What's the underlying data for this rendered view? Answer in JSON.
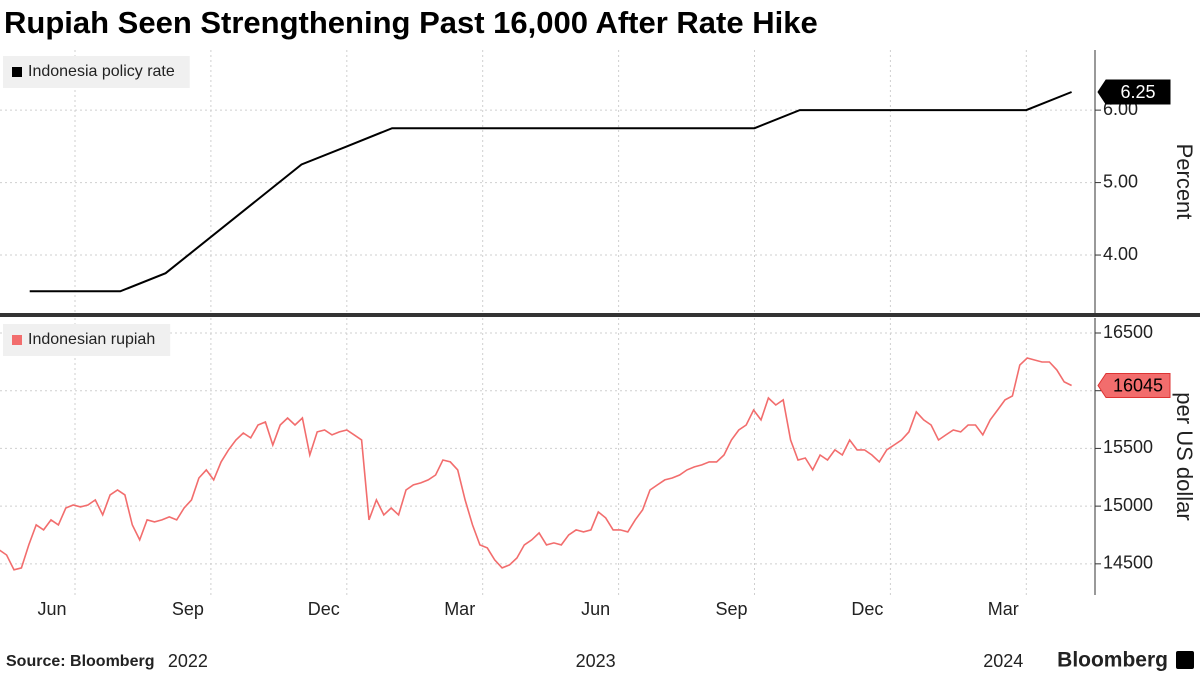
{
  "chart_data": {
    "type": "line",
    "title": "Rupiah Seen Strengthening Past 16,000 After Rate Hike",
    "source": "Source: Bloomberg",
    "brand": "Bloomberg",
    "xlim": [
      "2022-04",
      "2024-05"
    ],
    "xticks": [
      {
        "value": "2022-06",
        "label": "Jun"
      },
      {
        "value": "2022-09",
        "label": "Sep"
      },
      {
        "value": "2022-12",
        "label": "Dec"
      },
      {
        "value": "2023-03",
        "label": "Mar"
      },
      {
        "value": "2023-06",
        "label": "Jun"
      },
      {
        "value": "2023-09",
        "label": "Sep"
      },
      {
        "value": "2023-12",
        "label": "Dec"
      },
      {
        "value": "2024-03",
        "label": "Mar"
      }
    ],
    "year_labels": [
      {
        "value": "2022-09",
        "label": "2022"
      },
      {
        "value": "2023-06",
        "label": "2023"
      },
      {
        "value": "2024-03",
        "label": "2024"
      }
    ],
    "grid": true,
    "panels": [
      {
        "y_label": "Percent",
        "ylim": [
          3.2,
          6.83
        ],
        "yticks": [
          {
            "value": 4,
            "label": "4.00"
          },
          {
            "value": 5,
            "label": "5.00"
          },
          {
            "value": 6,
            "label": "6.00"
          }
        ],
        "series": [
          {
            "name": "Indonesia policy rate",
            "color": "#000000",
            "x": [
              "2022-05",
              "2022-07",
              "2022-08",
              "2022-11",
              "2022-12",
              "2023-01",
              "2023-09",
              "2023-10",
              "2024-03",
              "2024-04"
            ],
            "values": [
              3.5,
              3.5,
              3.75,
              5.25,
              5.5,
              5.75,
              5.75,
              6.0,
              6.0,
              6.25
            ]
          }
        ]
      },
      {
        "y_label": "per US dollar",
        "ylim": [
          14230,
          16630
        ],
        "yticks": [
          14500,
          15000,
          15500,
          16000,
          16500
        ],
        "series": [
          {
            "name": "Indonesian rupiah",
            "color": "#f26d6d",
            "x_range": [
              "2022-04",
              "2024-04"
            ],
            "values": [
              14534,
              14707,
              14621,
              14577,
              14448,
              14465,
              14664,
              14837,
              14794,
              14881,
              14837,
              14984,
              15010,
              14993,
              15010,
              15054,
              14924,
              15097,
              15140,
              15097,
              14837,
              14707,
              14881,
              14863,
              14881,
              14907,
              14881,
              14984,
              15054,
              15244,
              15314,
              15227,
              15383,
              15487,
              15573,
              15634,
              15591,
              15703,
              15729,
              15530,
              15703,
              15764,
              15703,
              15764,
              15443,
              15643,
              15660,
              15617,
              15643,
              15660,
              15617,
              15573,
              14881,
              15054,
              14924,
              14984,
              14924,
              15140,
              15184,
              15201,
              15227,
              15270,
              15400,
              15383,
              15314,
              15054,
              14837,
              14664,
              14638,
              14534,
              14465,
              14491,
              14551,
              14664,
              14707,
              14768,
              14664,
              14681,
              14664,
              14751,
              14794,
              14777,
              14794,
              14950,
              14898,
              14794,
              14794,
              14777,
              14881,
              14967,
              15140,
              15184,
              15227,
              15244,
              15270,
              15314,
              15340,
              15357,
              15383,
              15383,
              15443,
              15573,
              15660,
              15703,
              15833,
              15747,
              15937,
              15876,
              15920,
              15573,
              15400,
              15417,
              15314,
              15443,
              15400,
              15487,
              15443,
              15573,
              15487,
              15487,
              15443,
              15383,
              15487,
              15530,
              15573,
              15643,
              15816,
              15747,
              15703,
              15573,
              15617,
              15660,
              15643,
              15703,
              15703,
              15617,
              15747,
              15833,
              15920,
              15954,
              16223,
              16283,
              16266,
              16249,
              16249,
              16180,
              16076,
              16045
            ]
          }
        ]
      }
    ]
  }
}
